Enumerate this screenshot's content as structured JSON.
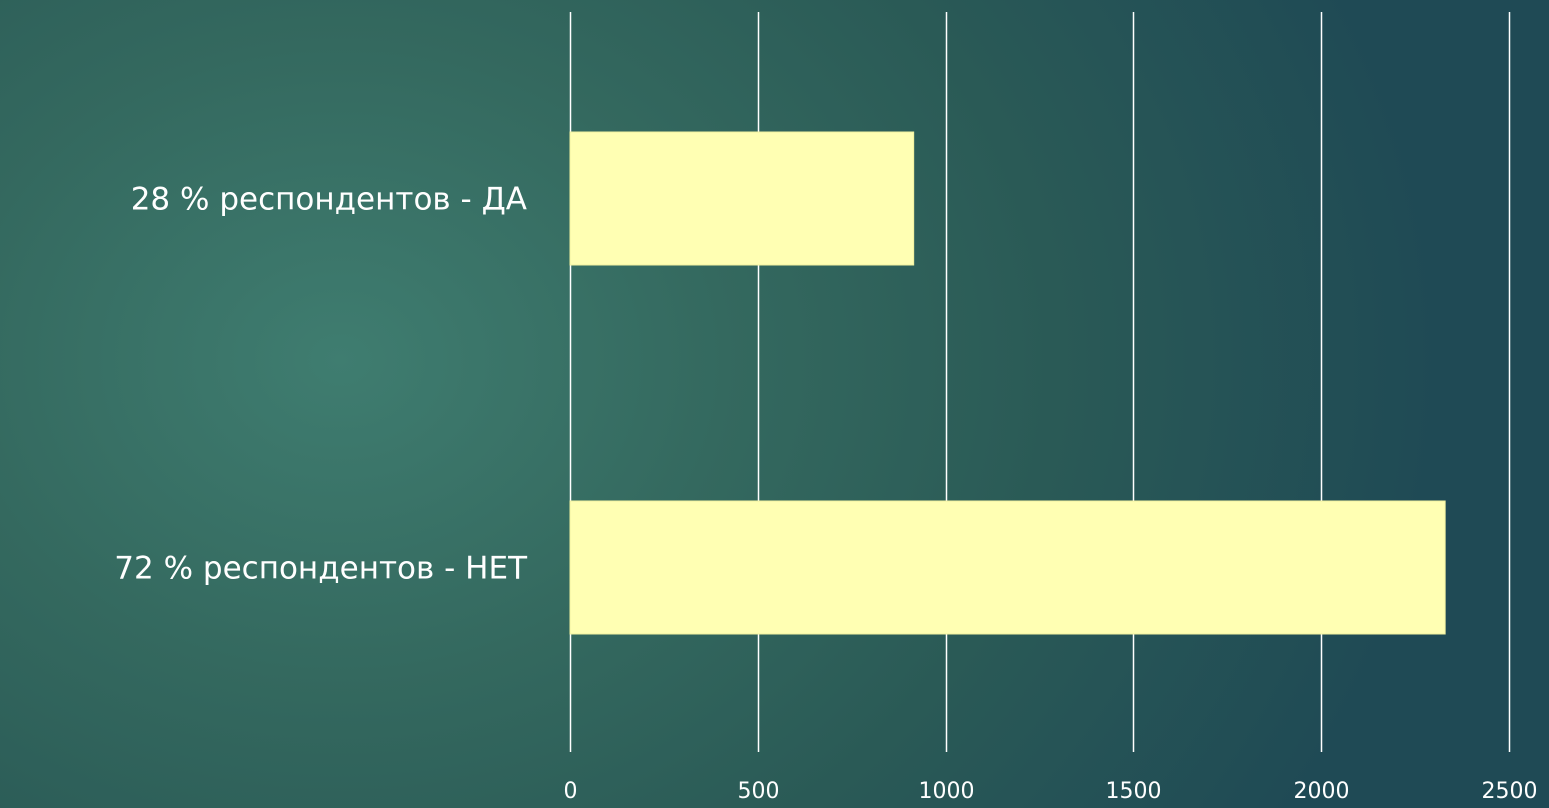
{
  "chart_data": {
    "type": "bar",
    "orientation": "horizontal",
    "title": "",
    "xlabel": "",
    "ylabel": "",
    "categories": [
      "28 % респондентов - ДА",
      "72 % респондентов - НЕТ"
    ],
    "values": [
      915,
      2330
    ],
    "xlim": [
      0,
      2500
    ],
    "ticks": [
      0,
      500,
      1000,
      1500,
      2000,
      2500
    ],
    "grid": true,
    "legend": "none",
    "colors": {
      "bar": "#ffffb3",
      "gridline": "#ffffff",
      "text": "#ffffff"
    }
  }
}
